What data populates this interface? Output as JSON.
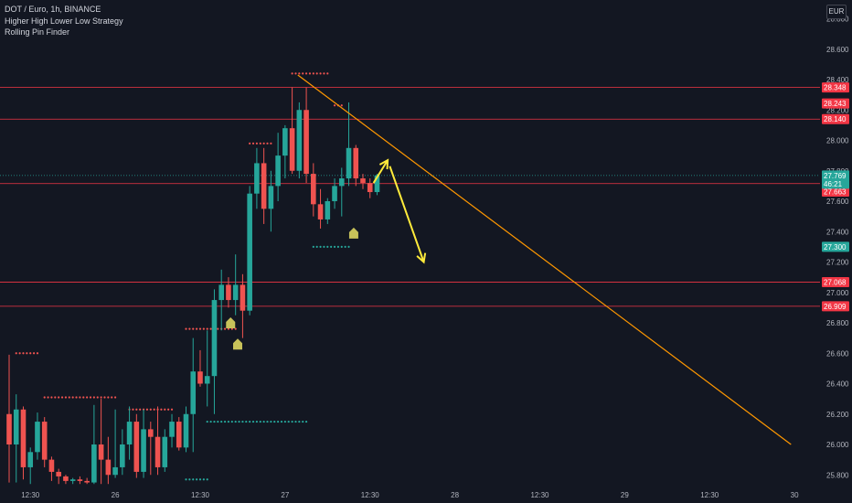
{
  "header": {
    "symbol_line": "DOT / Euro, 1h, BINANCE",
    "indicator_1": "Higher High Lower Low Strategy",
    "indicator_2": "Rolling Pin Finder"
  },
  "currency": "EUR",
  "colors": {
    "background": "#131722",
    "bull": "#26a69a",
    "bear": "#ef5350",
    "resistance_line": "#f23645",
    "trendline": "#ff9800",
    "arrow": "#ffeb3b",
    "signal_marker": "#c8c25a",
    "axis_text": "#b2b5be"
  },
  "chart_data": {
    "type": "candlestick",
    "symbol": "DOT / Euro",
    "interval": "1h",
    "exchange": "BINANCE",
    "ylim": [
      25.72,
      28.82
    ],
    "y_ticks": [
      "28.800",
      "28.600",
      "28.400",
      "28.200",
      "28.000",
      "27.800",
      "27.600",
      "27.400",
      "27.200",
      "27.000",
      "26.800",
      "26.600",
      "26.400",
      "26.200",
      "26.000",
      "25.800"
    ],
    "x_ticks": [
      "12:30",
      "26",
      "12:30",
      "27",
      "12:30",
      "28",
      "12:30",
      "29",
      "12:30",
      "30"
    ],
    "candles": [
      {
        "o": 26.2,
        "h": 26.59,
        "l": 25.75,
        "c": 26.0
      },
      {
        "o": 26.0,
        "h": 26.33,
        "l": 25.75,
        "c": 26.23
      },
      {
        "o": 26.23,
        "h": 26.25,
        "l": 25.77,
        "c": 25.85
      },
      {
        "o": 25.85,
        "h": 25.98,
        "l": 25.74,
        "c": 25.95
      },
      {
        "o": 25.95,
        "h": 26.21,
        "l": 25.9,
        "c": 26.15
      },
      {
        "o": 26.15,
        "h": 26.18,
        "l": 25.85,
        "c": 25.9
      },
      {
        "o": 25.9,
        "h": 25.92,
        "l": 25.76,
        "c": 25.82
      },
      {
        "o": 25.82,
        "h": 25.84,
        "l": 25.74,
        "c": 25.79
      },
      {
        "o": 25.79,
        "h": 25.8,
        "l": 25.74,
        "c": 25.76
      },
      {
        "o": 25.76,
        "h": 25.78,
        "l": 25.74,
        "c": 25.77
      },
      {
        "o": 25.77,
        "h": 25.79,
        "l": 25.74,
        "c": 25.76
      },
      {
        "o": 25.76,
        "h": 25.78,
        "l": 25.74,
        "c": 25.75
      },
      {
        "o": 25.75,
        "h": 26.26,
        "l": 25.74,
        "c": 26.0
      },
      {
        "o": 26.0,
        "h": 26.3,
        "l": 25.74,
        "c": 25.9
      },
      {
        "o": 25.9,
        "h": 26.05,
        "l": 25.74,
        "c": 25.8
      },
      {
        "o": 25.8,
        "h": 26.23,
        "l": 25.78,
        "c": 25.85
      },
      {
        "o": 25.85,
        "h": 26.1,
        "l": 25.8,
        "c": 26.0
      },
      {
        "o": 26.0,
        "h": 26.25,
        "l": 25.9,
        "c": 26.15
      },
      {
        "o": 26.15,
        "h": 26.2,
        "l": 25.78,
        "c": 25.82
      },
      {
        "o": 25.82,
        "h": 26.23,
        "l": 25.78,
        "c": 26.1
      },
      {
        "o": 26.1,
        "h": 26.15,
        "l": 25.8,
        "c": 26.05
      },
      {
        "o": 26.05,
        "h": 26.25,
        "l": 25.8,
        "c": 25.85
      },
      {
        "o": 25.85,
        "h": 26.1,
        "l": 25.82,
        "c": 26.05
      },
      {
        "o": 26.05,
        "h": 26.2,
        "l": 25.98,
        "c": 26.15
      },
      {
        "o": 26.15,
        "h": 26.18,
        "l": 25.96,
        "c": 25.98
      },
      {
        "o": 25.98,
        "h": 26.25,
        "l": 25.95,
        "c": 26.2
      },
      {
        "o": 26.2,
        "h": 26.7,
        "l": 25.95,
        "c": 26.48
      },
      {
        "o": 26.48,
        "h": 26.62,
        "l": 26.38,
        "c": 26.4
      },
      {
        "o": 26.4,
        "h": 26.75,
        "l": 26.25,
        "c": 26.45
      },
      {
        "o": 26.45,
        "h": 27.02,
        "l": 26.2,
        "c": 26.95
      },
      {
        "o": 26.95,
        "h": 27.15,
        "l": 26.75,
        "c": 27.05
      },
      {
        "o": 27.05,
        "h": 27.1,
        "l": 26.9,
        "c": 26.95
      },
      {
        "o": 26.95,
        "h": 27.25,
        "l": 26.85,
        "c": 27.05
      },
      {
        "o": 27.05,
        "h": 27.12,
        "l": 26.7,
        "c": 26.88
      },
      {
        "o": 26.88,
        "h": 27.7,
        "l": 26.85,
        "c": 27.65
      },
      {
        "o": 27.65,
        "h": 27.95,
        "l": 27.55,
        "c": 27.85
      },
      {
        "o": 27.85,
        "h": 27.95,
        "l": 27.45,
        "c": 27.55
      },
      {
        "o": 27.55,
        "h": 27.8,
        "l": 27.4,
        "c": 27.7
      },
      {
        "o": 27.7,
        "h": 28.05,
        "l": 27.6,
        "c": 27.9
      },
      {
        "o": 27.9,
        "h": 28.1,
        "l": 27.75,
        "c": 28.08
      },
      {
        "o": 28.08,
        "h": 28.35,
        "l": 27.78,
        "c": 27.8
      },
      {
        "o": 27.8,
        "h": 28.25,
        "l": 27.75,
        "c": 28.2
      },
      {
        "o": 28.2,
        "h": 28.35,
        "l": 27.72,
        "c": 27.78
      },
      {
        "o": 27.78,
        "h": 27.85,
        "l": 27.5,
        "c": 27.58
      },
      {
        "o": 27.58,
        "h": 27.68,
        "l": 27.42,
        "c": 27.48
      },
      {
        "o": 27.48,
        "h": 27.62,
        "l": 27.45,
        "c": 27.6
      },
      {
        "o": 27.6,
        "h": 27.75,
        "l": 27.55,
        "c": 27.7
      },
      {
        "o": 27.7,
        "h": 27.82,
        "l": 27.5,
        "c": 27.75
      },
      {
        "o": 27.75,
        "h": 28.25,
        "l": 27.7,
        "c": 27.95
      },
      {
        "o": 27.95,
        "h": 27.97,
        "l": 27.7,
        "c": 27.75
      },
      {
        "o": 27.75,
        "h": 27.78,
        "l": 27.68,
        "c": 27.72
      },
      {
        "o": 27.72,
        "h": 27.75,
        "l": 27.62,
        "c": 27.66
      },
      {
        "o": 27.66,
        "h": 27.78,
        "l": 27.64,
        "c": 27.77
      }
    ],
    "horizontal_levels": [
      {
        "value": 28.348,
        "label": "28.348"
      },
      {
        "value": 28.14,
        "label": "28.140"
      },
      {
        "value": 27.716,
        "label": "27.716"
      },
      {
        "value": 27.068,
        "label": "27.068"
      },
      {
        "value": 26.909,
        "label": "26.909"
      }
    ],
    "extra_price_labels": [
      {
        "value": 28.243,
        "label": "28.243",
        "color": "#f23645"
      },
      {
        "value": 27.663,
        "label": "27.663",
        "color": "#f23645"
      },
      {
        "value": 27.3,
        "label": "27.300",
        "color": "#26a69a"
      }
    ],
    "current_price": {
      "value": 27.769,
      "label": "27.769",
      "countdown": "46:21"
    },
    "trendline": {
      "from": {
        "bar": 40.8,
        "price": 28.43
      },
      "to": {
        "bar": 110.5,
        "price": 26.0
      }
    },
    "arrows": [
      {
        "from": {
          "bar": 51.5,
          "price": 27.72
        },
        "to": {
          "bar": 53.5,
          "price": 27.87
        }
      },
      {
        "from": {
          "bar": 53.8,
          "price": 27.83
        },
        "to": {
          "bar": 58.6,
          "price": 27.2
        }
      }
    ],
    "dot_levels": [
      {
        "color": "bear",
        "price": 26.6,
        "from_bar": 1,
        "to_bar": 4
      },
      {
        "color": "bear",
        "price": 26.31,
        "from_bar": 5,
        "to_bar": 15
      },
      {
        "color": "bear",
        "price": 26.23,
        "from_bar": 17,
        "to_bar": 23
      },
      {
        "color": "bear",
        "price": 26.76,
        "from_bar": 25,
        "to_bar": 32
      },
      {
        "color": "bear",
        "price": 27.98,
        "from_bar": 34,
        "to_bar": 37
      },
      {
        "color": "bear",
        "price": 28.44,
        "from_bar": 40,
        "to_bar": 45
      },
      {
        "color": "bear",
        "price": 28.23,
        "from_bar": 46,
        "to_bar": 47
      },
      {
        "color": "bull",
        "price": 26.15,
        "from_bar": 28,
        "to_bar": 42
      },
      {
        "color": "bull",
        "price": 25.77,
        "from_bar": 25,
        "to_bar": 28
      },
      {
        "color": "bull",
        "price": 27.3,
        "from_bar": 43,
        "to_bar": 48
      }
    ],
    "signal_markers": [
      {
        "bar": 31.3,
        "price": 26.8
      },
      {
        "bar": 32.3,
        "price": 26.66
      },
      {
        "bar": 48.7,
        "price": 27.39
      }
    ]
  }
}
